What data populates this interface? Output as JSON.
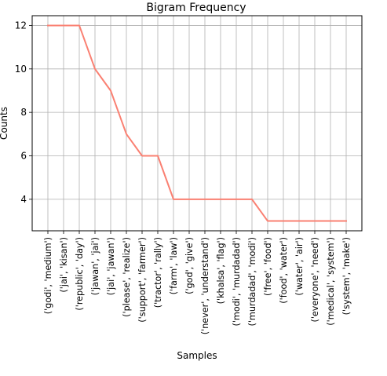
{
  "chart_data": {
    "type": "line",
    "title": "Bigram Frequency",
    "xlabel": "Samples",
    "ylabel": "Counts",
    "categories": [
      "('godi', 'medium')",
      "('jai', 'kisan')",
      "('republic', 'day')",
      "('jawan', 'jai')",
      "('jai', 'jawan')",
      "('please', 'realize')",
      "('support', 'farmer')",
      "('tractor', 'rally')",
      "('farm', 'law')",
      "('god', 'give')",
      "('never', 'understand')",
      "('khalsa', 'flag')",
      "('modi', 'murdadad')",
      "('murdadad', 'modi')",
      "('free', 'food')",
      "('food', 'water')",
      "('water', 'air')",
      "('everyone', 'need')",
      "('medical', 'system')",
      "('system', 'make')"
    ],
    "values": [
      12,
      12,
      12,
      10,
      9,
      7,
      6,
      6,
      4,
      4,
      4,
      4,
      4,
      4,
      3,
      3,
      3,
      3,
      3,
      3
    ],
    "yticks": [
      4,
      6,
      8,
      10,
      12
    ],
    "ylim": [
      2.55,
      12.45
    ],
    "grid": true,
    "line_color": "#fa8072"
  }
}
